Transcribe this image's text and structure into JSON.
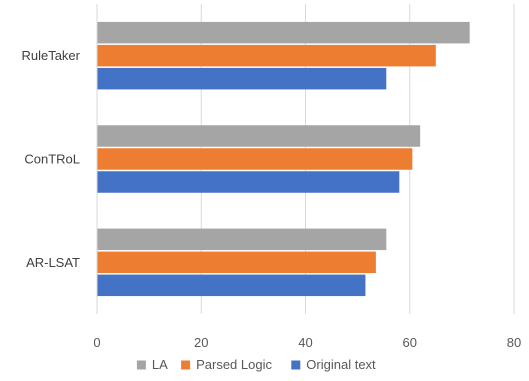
{
  "chart_data": {
    "type": "bar",
    "orientation": "horizontal",
    "categories": [
      "RuleTaker",
      "ConTRoL",
      "AR-LSAT"
    ],
    "series": [
      {
        "name": "LA",
        "color": "#a5a5a5",
        "values": [
          71.5,
          62,
          55.5
        ]
      },
      {
        "name": "Parsed Logic",
        "color": "#ed7d31",
        "values": [
          65,
          60.5,
          53.5
        ]
      },
      {
        "name": "Original text",
        "color": "#4472c4",
        "values": [
          55.5,
          58,
          51.5
        ]
      }
    ],
    "xlim": [
      0,
      80
    ],
    "xticks": [
      0,
      20,
      40,
      60,
      80
    ],
    "grid": true,
    "legend_position": "bottom",
    "title": "",
    "xlabel": "",
    "ylabel": ""
  }
}
